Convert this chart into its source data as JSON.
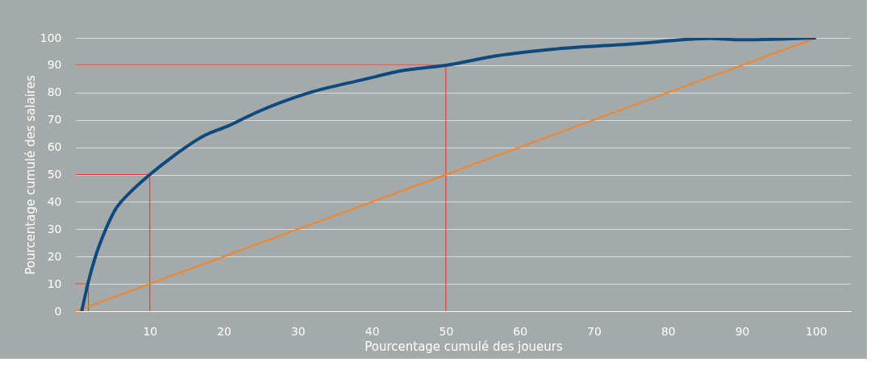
{
  "chart_data": {
    "type": "line",
    "xlabel": "Pourcentage cumulé des joueurs",
    "ylabel": "Pourcentage cumulé des salaires",
    "xlim": [
      0,
      104.7
    ],
    "ylim": [
      0,
      100
    ],
    "xticks": [
      10,
      20,
      30,
      40,
      50,
      60,
      70,
      80,
      90,
      100
    ],
    "yticks": [
      0,
      10,
      20,
      30,
      40,
      50,
      60,
      70,
      80,
      90,
      100
    ],
    "grid": "y",
    "legend": false,
    "marker": "none",
    "line_style": "solid",
    "series": [
      {
        "color": "#0d4a80",
        "x": [
          0.8,
          1.7,
          2.6,
          4.1,
          5.3,
          7.5,
          10,
          13.3,
          17.4,
          20.6,
          24.2,
          31.5,
          38.8,
          44.3,
          50,
          57,
          64.3,
          75.2,
          85.8,
          89.7,
          100
        ],
        "values": [
          0,
          10.8,
          19.5,
          30.3,
          37,
          43.9,
          50,
          57,
          64.3,
          67.8,
          72.5,
          79.9,
          84.7,
          88.1,
          90,
          93.5,
          95.8,
          97.8,
          99.8,
          99.3,
          100
        ]
      },
      {
        "color": "#f4842a",
        "x": [
          0,
          100
        ],
        "values": [
          0,
          100
        ]
      },
      {
        "color": "#e8322d",
        "x": [
          0,
          10,
          10
        ],
        "values": [
          50,
          50,
          0
        ]
      },
      {
        "color": "#e8322d",
        "x": [
          0,
          50,
          50
        ],
        "values": [
          90,
          90,
          0
        ]
      },
      {
        "color": "#e8322d",
        "x": [
          0,
          1.7,
          1.7
        ],
        "values": [
          10,
          10,
          0
        ]
      }
    ]
  }
}
